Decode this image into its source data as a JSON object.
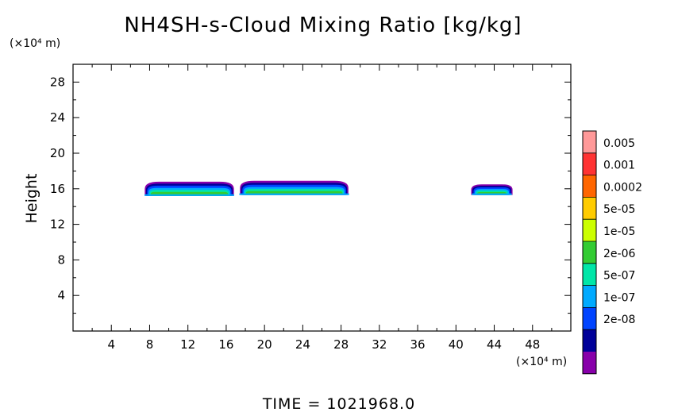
{
  "chart_data": {
    "type": "heatmap",
    "title": "NH4SH-s-Cloud Mixing Ratio [kg/kg]",
    "xlabel": "",
    "x_unit": "(×10⁴ m)",
    "ylabel": "Height",
    "y_unit": "(×10⁴ m)",
    "xlim": [
      0,
      52
    ],
    "ylim": [
      0,
      30
    ],
    "x_ticks": [
      "4",
      "8",
      "12",
      "16",
      "20",
      "24",
      "28",
      "32",
      "36",
      "40",
      "44",
      "48"
    ],
    "y_ticks": [
      "4",
      "8",
      "12",
      "16",
      "20",
      "24",
      "28"
    ],
    "grid": false,
    "colorbar": {
      "levels": [
        "0.005",
        "0.001",
        "0.0002",
        "5e-05",
        "1e-05",
        "2e-06",
        "5e-07",
        "1e-07",
        "2e-08"
      ],
      "colors": [
        "#ff9999",
        "#ff3333",
        "#ff6600",
        "#ffcc00",
        "#ccff00",
        "#33cc33",
        "#00e6a8",
        "#00aaff",
        "#0044ff",
        "#000099",
        "#8800aa"
      ]
    },
    "clouds": [
      {
        "x_start": 7.3,
        "x_end": 17.0,
        "y_bottom": 15.2,
        "y_top": 16.8
      },
      {
        "x_start": 17.2,
        "x_end": 29.0,
        "y_bottom": 15.3,
        "y_top": 16.9
      },
      {
        "x_start": 41.5,
        "x_end": 46.0,
        "y_bottom": 15.3,
        "y_top": 16.5
      }
    ],
    "time_label": "TIME",
    "time_value": "1021968.0"
  }
}
